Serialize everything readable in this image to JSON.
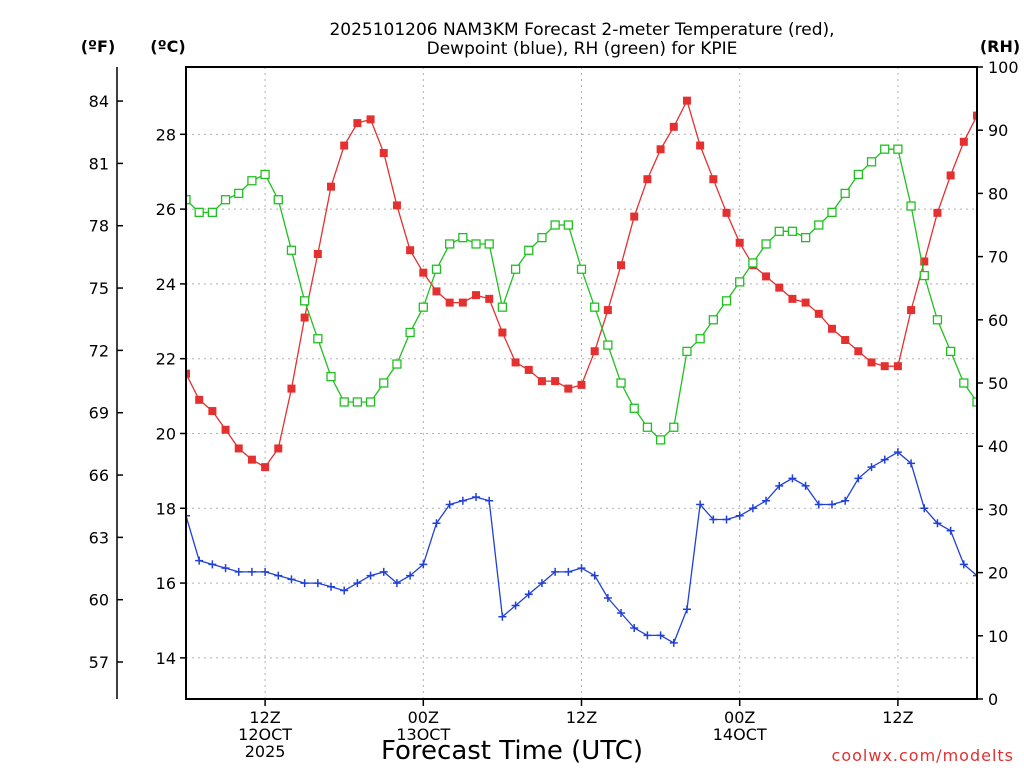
{
  "chart_data": {
    "type": "line",
    "title_line1": "2025101206 NAM3KM Forecast 2-meter Temperature (red),",
    "title_line2": "Dewpoint (blue), RH (green) for KPIE",
    "unit_f": "(ºF)",
    "unit_c": "(ºC)",
    "unit_rh": "(RH)",
    "xlabel": "Forecast Time (UTC)",
    "credit": "coolwx.com/modelts",
    "x_range_hours": [
      7,
      67
    ],
    "celsius_range": [
      12.9,
      29.8
    ],
    "rh_range": [
      0,
      100
    ],
    "celsius_ticks": [
      "14",
      "16",
      "18",
      "20",
      "22",
      "24",
      "26",
      "28"
    ],
    "fahrenheit_ticks": [
      "57",
      "60",
      "63",
      "66",
      "69",
      "72",
      "75",
      "78",
      "81",
      "84"
    ],
    "rh_ticks": [
      "0",
      "10",
      "20",
      "30",
      "40",
      "50",
      "60",
      "70",
      "80",
      "90",
      "100"
    ],
    "x_ticks": [
      {
        "hour": 13,
        "lines": [
          "12Z",
          "12OCT",
          "2025"
        ]
      },
      {
        "hour": 25,
        "lines": [
          "00Z",
          "13OCT"
        ]
      },
      {
        "hour": 37,
        "lines": [
          "12Z"
        ]
      },
      {
        "hour": 49,
        "lines": [
          "00Z",
          "14OCT"
        ]
      },
      {
        "hour": 61,
        "lines": [
          "12Z"
        ]
      }
    ],
    "x_hours": [
      7,
      8,
      9,
      10,
      11,
      12,
      13,
      14,
      15,
      16,
      17,
      18,
      19,
      20,
      21,
      22,
      23,
      24,
      25,
      26,
      27,
      28,
      29,
      30,
      31,
      32,
      33,
      34,
      35,
      36,
      37,
      38,
      39,
      40,
      41,
      42,
      43,
      44,
      45,
      46,
      47,
      48,
      49,
      50,
      51,
      52,
      53,
      54,
      55,
      56,
      57,
      58,
      59,
      60,
      61,
      62,
      63,
      64,
      65,
      66,
      67
    ],
    "series": [
      {
        "name": "Temperature",
        "color": "#e53030",
        "marker": "filled-square",
        "units": "C",
        "values": [
          21.6,
          20.9,
          20.6,
          20.1,
          19.6,
          19.3,
          19.1,
          19.6,
          21.2,
          23.1,
          24.8,
          26.6,
          27.7,
          28.3,
          28.4,
          27.5,
          26.1,
          24.9,
          24.3,
          23.8,
          23.5,
          23.5,
          23.7,
          23.6,
          22.7,
          21.9,
          21.7,
          21.4,
          21.4,
          21.2,
          21.3,
          22.2,
          23.3,
          24.5,
          25.8,
          26.8,
          27.6,
          28.2,
          28.9,
          27.7,
          26.8,
          25.9,
          25.1,
          24.5,
          24.2,
          23.9,
          23.6,
          23.5,
          23.2,
          22.8,
          22.5,
          22.2,
          21.9,
          21.8,
          21.8,
          23.3,
          24.6,
          25.9,
          26.9,
          27.8,
          28.5
        ]
      },
      {
        "name": "Dewpoint",
        "color": "#2040d8",
        "marker": "plus",
        "units": "C",
        "values": [
          17.8,
          16.6,
          16.5,
          16.4,
          16.3,
          16.3,
          16.3,
          16.2,
          16.1,
          16.0,
          16.0,
          15.9,
          15.8,
          16.0,
          16.2,
          16.3,
          16.0,
          16.2,
          16.5,
          17.6,
          18.1,
          18.2,
          18.3,
          18.2,
          15.1,
          15.4,
          15.7,
          16.0,
          16.3,
          16.3,
          16.4,
          16.2,
          15.6,
          15.2,
          14.8,
          14.6,
          14.6,
          14.4,
          15.3,
          18.1,
          17.7,
          17.7,
          17.8,
          18.0,
          18.2,
          18.6,
          18.8,
          18.6,
          18.1,
          18.1,
          18.2,
          18.8,
          19.1,
          19.3,
          19.5,
          19.2,
          18.0,
          17.6,
          17.4,
          16.5,
          16.2
        ]
      },
      {
        "name": "RH",
        "color": "#20c020",
        "marker": "open-square",
        "units": "%",
        "values": [
          79,
          77,
          77,
          79,
          80,
          82,
          83,
          79,
          71,
          63,
          57,
          51,
          47,
          47,
          47,
          50,
          53,
          58,
          62,
          68,
          72,
          73,
          72,
          72,
          62,
          68,
          71,
          73,
          75,
          75,
          68,
          62,
          56,
          50,
          46,
          43,
          41,
          43,
          55,
          57,
          60,
          63,
          66,
          69,
          72,
          74,
          74,
          73,
          75,
          77,
          80,
          83,
          85,
          87,
          87,
          78,
          67,
          60,
          55,
          50,
          47
        ]
      }
    ]
  }
}
